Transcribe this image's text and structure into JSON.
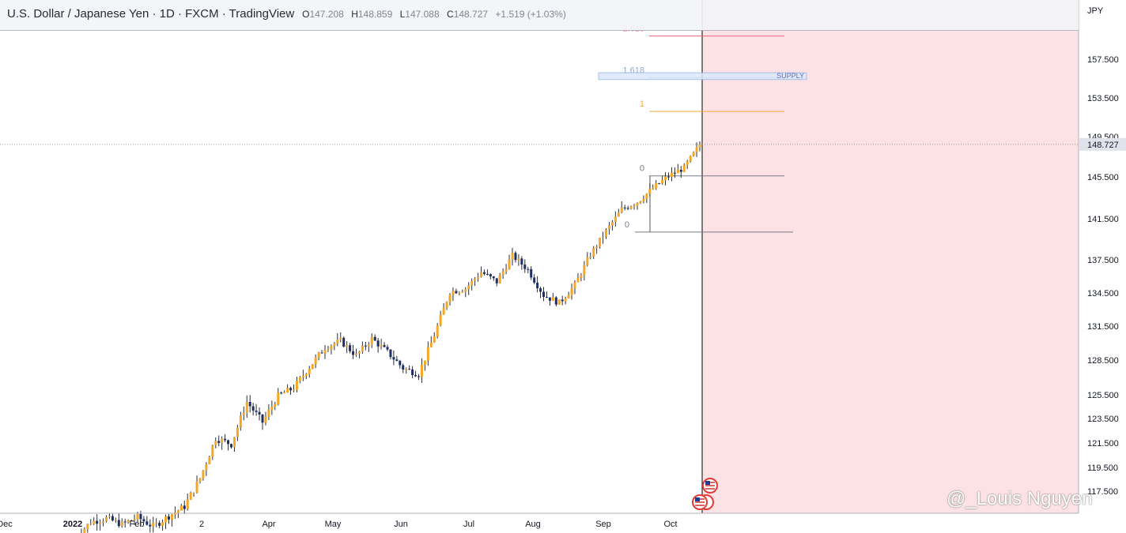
{
  "header": {
    "title": "U.S. Dollar / Japanese Yen · 1D · FXCM · TradingView",
    "o_label": "O",
    "o_value": "147.208",
    "h_label": "H",
    "h_value": "148.859",
    "l_label": "L",
    "l_value": "147.088",
    "c_label": "C",
    "c_value": "148.727",
    "change": "+1.519 (+1.03%)"
  },
  "watermark": "@_Louis Nguyen",
  "colors": {
    "up": "#f5a623",
    "down": "#1f2e63",
    "projection_bg": "#fde2e5",
    "fib_2618": "#e9657e",
    "fib_1618": "#8aa9d6",
    "fib_1": "#f5a742",
    "fib_0": "#787b86",
    "supply": "#5a72c9",
    "price_tag": "#e0e3eb"
  },
  "chart_data": {
    "type": "candlestick",
    "symbol": "USDJPY",
    "timeframe": "1D",
    "y_unit": "JPY",
    "ylim": [
      116.0,
      162.0
    ],
    "yticks": [
      "157.500",
      "153.500",
      "149.500",
      "145.500",
      "141.500",
      "137.500",
      "134.500",
      "131.500",
      "128.500",
      "125.500",
      "123.500",
      "121.500",
      "119.500",
      "117.500"
    ],
    "ytick_values": [
      157.5,
      153.5,
      149.5,
      145.5,
      141.5,
      137.5,
      134.5,
      131.5,
      128.5,
      125.5,
      123.5,
      121.5,
      119.5,
      117.5
    ],
    "xticks": [
      "Dec",
      "2022",
      "Feb",
      "2",
      "Apr",
      "May",
      "Jun",
      "Jul",
      "Aug",
      "Sep",
      "Oct"
    ],
    "last_price": "148.727",
    "last_price_value": 148.727,
    "fib_levels": [
      {
        "label": "2.618",
        "price": 159.9
      },
      {
        "label": "1.618",
        "price": 155.6
      },
      {
        "label": "1",
        "price": 152.1
      },
      {
        "label": "0",
        "price": 145.6
      },
      {
        "label": "0",
        "price": 140.2
      }
    ],
    "zone": {
      "label": "SUPPLY",
      "top": 156.1,
      "bottom": 155.4
    },
    "closes_weekly": [
      113.5,
      114.9,
      115.2,
      114.7,
      115.3,
      114.5,
      115.4,
      116.2,
      118.6,
      121.9,
      121.4,
      124.9,
      123.2,
      125.4,
      126.1,
      127.9,
      129.6,
      130.2,
      128.9,
      130.4,
      129.2,
      127.8,
      127.3,
      130.7,
      134.6,
      134.9,
      136.4,
      135.5,
      137.9,
      136.6,
      134.3,
      133.6,
      135.2,
      138.0,
      140.3,
      142.4,
      143.1,
      144.4,
      145.6,
      146.4,
      148.7
    ]
  }
}
